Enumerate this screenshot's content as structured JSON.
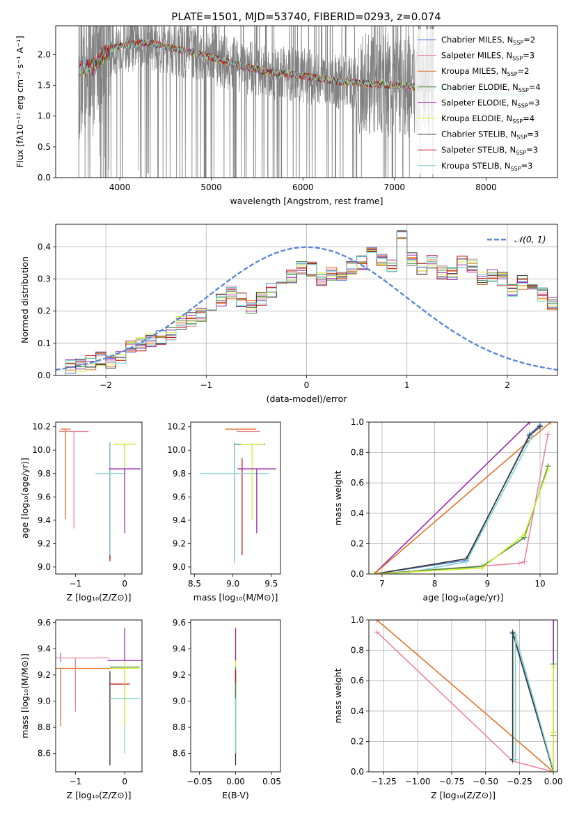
{
  "title": "PLATE=1501, MJD=53740, FIBERID=0293, z=0.074",
  "colors": {
    "chabrier_miles": "#5b7fd3",
    "salpeter_miles": "#e8869a",
    "kroupa_miles": "#e07428",
    "chabrier_elodie": "#3f8a3f",
    "salpeter_elodie": "#9b27b0",
    "kroupa_elodie": "#d7ec2f",
    "chabrier_stelib": "#333333",
    "salpeter_stelib": "#c61a1a",
    "kroupa_stelib": "#7fd3d3",
    "data": "#808080",
    "gauss": "#5b87d9",
    "grid": "#b0b0b0"
  },
  "legend": [
    {
      "key": "chabrier_miles",
      "pre": "Chabrier MILES, N",
      "sub": "SSP",
      "post": "=2"
    },
    {
      "key": "salpeter_miles",
      "pre": "Salpeter MILES, N",
      "sub": "SSP",
      "post": "=3"
    },
    {
      "key": "kroupa_miles",
      "pre": "Kroupa MILES, N",
      "sub": "SSP",
      "post": "=2"
    },
    {
      "key": "chabrier_elodie",
      "pre": "Chabrier ELODIE, N",
      "sub": "SSP",
      "post": "=4"
    },
    {
      "key": "salpeter_elodie",
      "pre": "Salpeter ELODIE, N",
      "sub": "SSP",
      "post": "=3"
    },
    {
      "key": "kroupa_elodie",
      "pre": "Kroupa ELODIE, N",
      "sub": "SSP",
      "post": "=4"
    },
    {
      "key": "chabrier_stelib",
      "pre": "Chabrier STELIB, N",
      "sub": "SSP",
      "post": "=3"
    },
    {
      "key": "salpeter_stelib",
      "pre": "Salpeter STELIB, N",
      "sub": "SSP",
      "post": "=3"
    },
    {
      "key": "kroupa_stelib",
      "pre": "Kroupa STELIB, N",
      "sub": "SSP",
      "post": "=3"
    }
  ],
  "chart_data": [
    {
      "id": "spectrum",
      "type": "line",
      "ylabel": "Flux [fλ10⁻¹⁷ erg cm⁻² s⁻¹ A⁻¹]",
      "xlabel": "wavelength [Angstrom, rest frame]",
      "xlim": [
        3300,
        8780
      ],
      "ylim": [
        0,
        2.47
      ],
      "xticks": [
        4000,
        5000,
        6000,
        7000,
        8000
      ],
      "yticks": [
        0.0,
        0.5,
        1.0,
        1.5,
        2.0
      ],
      "grid": false,
      "legend_position": "upper right",
      "data_range": [
        3550,
        7430
      ],
      "model_range": [
        3560,
        7430
      ],
      "model_extension_range": [
        7430,
        8440
      ],
      "model_continuum": [
        [
          3560,
          1.78
        ],
        [
          3700,
          1.8
        ],
        [
          3850,
          2.05
        ],
        [
          4000,
          2.15
        ],
        [
          4300,
          2.2
        ],
        [
          4600,
          2.1
        ],
        [
          4900,
          2.0
        ],
        [
          5200,
          1.87
        ],
        [
          5600,
          1.72
        ],
        [
          6000,
          1.66
        ],
        [
          6400,
          1.56
        ],
        [
          6800,
          1.52
        ],
        [
          7100,
          1.49
        ],
        [
          7400,
          1.45
        ],
        [
          7800,
          1.4
        ],
        [
          8100,
          1.37
        ],
        [
          8440,
          1.33
        ]
      ]
    },
    {
      "id": "residuals",
      "type": "histogram",
      "ylabel": "Normed distribution",
      "xlabel": "(data-model)/error",
      "xlim": [
        -2.5,
        2.5
      ],
      "ylim": [
        0,
        0.47
      ],
      "xticks": [
        -2,
        -1,
        0,
        1,
        2
      ],
      "xticklabels": [
        "−2",
        "−1",
        "0",
        "1",
        "2"
      ],
      "yticks": [
        0.0,
        0.1,
        0.2,
        0.3,
        0.4
      ],
      "grid": true,
      "legend": [
        {
          "label": "𝒩(0, 1)",
          "style": "dashed"
        }
      ],
      "legend_position": "upper right",
      "bin_width": 0.1,
      "bin_start": -2.5,
      "reference_heights": [
        0.02,
        0.028,
        0.034,
        0.04,
        0.052,
        0.045,
        0.058,
        0.085,
        0.095,
        0.108,
        0.118,
        0.13,
        0.165,
        0.175,
        0.19,
        0.205,
        0.235,
        0.26,
        0.235,
        0.215,
        0.24,
        0.265,
        0.295,
        0.31,
        0.335,
        0.33,
        0.3,
        0.315,
        0.31,
        0.335,
        0.35,
        0.4,
        0.355,
        0.34,
        0.43,
        0.36,
        0.33,
        0.355,
        0.32,
        0.32,
        0.355,
        0.34,
        0.3,
        0.315,
        0.3,
        0.265,
        0.29,
        0.265,
        0.25,
        0.225,
        0.205,
        0.19,
        0.175,
        0.15,
        0.135,
        0.12,
        0.11,
        0.1,
        0.09,
        0.085,
        0.075,
        0.07,
        0.06,
        0.055,
        0.045,
        0.035
      ],
      "gauss": {
        "mu": 0,
        "sigma": 1
      }
    },
    {
      "id": "age_vs_z",
      "type": "errorbar",
      "ylabel": "age  [log₁₀(age/yr)]",
      "xlabel": "Z [log₁₀(Z/Z⊙)]",
      "xlim": [
        -1.4,
        0.35
      ],
      "ylim": [
        8.94,
        10.24
      ],
      "xticks": [
        -1,
        0
      ],
      "xticklabels": [
        "−1",
        "0"
      ],
      "yticks": [
        9.0,
        9.2,
        9.4,
        9.6,
        9.8,
        10.0,
        10.2
      ],
      "grid": false,
      "points": [
        {
          "key": "kroupa_miles",
          "x": -1.2,
          "xerr": 0.1,
          "y": 10.18,
          "yerr": [
            0.77,
            0.0
          ]
        },
        {
          "key": "salpeter_miles",
          "x": -1.03,
          "xerr": 0.3,
          "y": 10.16,
          "yerr": [
            0.83,
            0.0
          ]
        },
        {
          "key": "chabrier_stelib",
          "x": -0.3,
          "xerr": 0.0,
          "y": 10.06,
          "yerr": [
            0.99,
            0.0
          ]
        },
        {
          "key": "salpeter_stelib",
          "x": -0.3,
          "xerr": 0.0,
          "y": 9.1,
          "yerr": [
            0.05,
            0.0
          ]
        },
        {
          "key": "kroupa_stelib",
          "x": -0.3,
          "xerr": 0.3,
          "y": 9.8,
          "yerr": [
            0.7,
            0.27
          ]
        },
        {
          "key": "chabrier_elodie",
          "x": 0.0,
          "xerr": 0.22,
          "y": 10.05,
          "yerr": [
            0.65,
            0.0
          ]
        },
        {
          "key": "kroupa_elodie",
          "x": 0.0,
          "xerr": 0.22,
          "y": 10.05,
          "yerr": [
            0.65,
            0.0
          ]
        },
        {
          "key": "salpeter_elodie",
          "x": 0.0,
          "xerr": 0.32,
          "y": 9.84,
          "yerr": [
            0.55,
            0.0
          ]
        }
      ]
    },
    {
      "id": "age_vs_mass",
      "type": "errorbar",
      "ylabel": "",
      "xlabel": "mass [log₁₀(M/M⊙)]",
      "xlim": [
        8.45,
        9.62
      ],
      "ylim": [
        8.94,
        10.24
      ],
      "xticks": [
        8.5,
        9.0,
        9.5
      ],
      "yticks": [
        9.0,
        9.2,
        9.4,
        9.6,
        9.8,
        10.0,
        10.2
      ],
      "grid": false,
      "points": [
        {
          "key": "kroupa_miles",
          "x": 9.1,
          "xerr": 0.2,
          "y": 10.18,
          "yerr": [
            0.0,
            0.0
          ]
        },
        {
          "key": "salpeter_miles",
          "x": 9.2,
          "xerr": 0.15,
          "y": 10.16,
          "yerr": [
            0.0,
            0.0
          ]
        },
        {
          "key": "chabrier_stelib",
          "x": 9.02,
          "xerr": 0.0,
          "y": 10.06,
          "yerr": [
            0.99,
            0.0
          ]
        },
        {
          "key": "salpeter_stelib",
          "x": 9.12,
          "xerr": 0.0,
          "y": 9.8,
          "yerr": [
            0.7,
            0.13
          ]
        },
        {
          "key": "kroupa_stelib",
          "x": 9.02,
          "xerr": 0.45,
          "y": 9.8,
          "yerr": [
            0.77,
            0.27
          ]
        },
        {
          "key": "chabrier_elodie",
          "x": 9.22,
          "xerr": 0.2,
          "y": 10.05,
          "yerr": [
            0.0,
            0.0
          ]
        },
        {
          "key": "kroupa_elodie",
          "x": 9.25,
          "xerr": 0.15,
          "y": 10.05,
          "yerr": [
            0.65,
            0.0
          ]
        },
        {
          "key": "salpeter_elodie",
          "x": 9.31,
          "xerr": 0.25,
          "y": 9.84,
          "yerr": [
            0.55,
            0.0
          ]
        }
      ]
    },
    {
      "id": "mass_weight_vs_age",
      "type": "line",
      "ylabel": "mass weight",
      "xlabel": "age  [log₁₀(age/yr)]",
      "xlim": [
        6.75,
        10.33
      ],
      "ylim": [
        0,
        1
      ],
      "xticks": [
        7,
        8,
        9,
        10
      ],
      "yticks": [
        0.0,
        0.2,
        0.4,
        0.6,
        0.8,
        1.0
      ],
      "grid": true,
      "series": [
        {
          "key": "salpeter_elodie",
          "x": [
            6.85,
            9.8
          ],
          "y": [
            0.0,
            1.0
          ]
        },
        {
          "key": "kroupa_miles",
          "x": [
            6.85,
            10.2
          ],
          "y": [
            0.0,
            1.0
          ]
        },
        {
          "key": "chabrier_miles",
          "x": [
            6.85,
            8.6,
            9.8,
            10.0
          ],
          "y": [
            0.0,
            0.09,
            0.92,
            0.98
          ]
        },
        {
          "key": "chabrier_stelib",
          "x": [
            6.85,
            8.6,
            9.8,
            10.0
          ],
          "y": [
            0.0,
            0.1,
            0.91,
            0.97
          ]
        },
        {
          "key": "kroupa_stelib",
          "x": [
            6.85,
            7.5,
            8.6,
            9.85
          ],
          "y": [
            0.0,
            0.01,
            0.08,
            0.91
          ]
        },
        {
          "key": "salpeter_miles",
          "x": [
            6.85,
            9.6,
            9.7,
            10.15
          ],
          "y": [
            0.0,
            0.07,
            0.08,
            0.92
          ]
        },
        {
          "key": "chabrier_elodie",
          "x": [
            6.85,
            8.9,
            9.7,
            10.15
          ],
          "y": [
            0.0,
            0.05,
            0.24,
            0.71
          ]
        },
        {
          "key": "kroupa_elodie",
          "x": [
            6.85,
            8.9,
            9.7,
            10.15
          ],
          "y": [
            0.0,
            0.04,
            0.26,
            0.69
          ]
        }
      ]
    },
    {
      "id": "mass_vs_z",
      "type": "errorbar",
      "ylabel": "mass [log₁₀(M/M⊙)]",
      "xlabel": "Z [log₁₀(Z/Z⊙)]",
      "xlim": [
        -1.4,
        0.35
      ],
      "ylim": [
        8.46,
        9.62
      ],
      "xticks": [
        -1,
        0
      ],
      "xticklabels": [
        "−1",
        "0"
      ],
      "yticks": [
        8.6,
        8.8,
        9.0,
        9.2,
        9.4,
        9.6
      ],
      "grid": false,
      "points": [
        {
          "key": "chabrier_miles",
          "x": -1.3,
          "xerr": 0.0,
          "y": 9.3,
          "yerr": [
            0.0,
            0.07
          ]
        },
        {
          "key": "kroupa_miles",
          "x": -1.3,
          "xerr": 1.3,
          "y": 9.25,
          "yerr": [
            0.44,
            0.0
          ]
        },
        {
          "key": "salpeter_miles",
          "x": -1.0,
          "xerr": 0.7,
          "y": 9.33,
          "yerr": [
            0.41,
            0.0
          ]
        },
        {
          "key": "chabrier_stelib",
          "x": -0.3,
          "xerr": 0.0,
          "y": 9.23,
          "yerr": [
            0.72,
            0.0
          ]
        },
        {
          "key": "salpeter_stelib",
          "x": -0.1,
          "xerr": 0.2,
          "y": 9.13,
          "yerr": [
            0.0,
            0.0
          ]
        },
        {
          "key": "kroupa_stelib",
          "x": 0.0,
          "xerr": 0.3,
          "y": 9.02,
          "yerr": [
            0.42,
            0.0
          ]
        },
        {
          "key": "chabrier_elodie",
          "x": 0.0,
          "xerr": 0.3,
          "y": 9.26,
          "yerr": [
            0.44,
            0.0
          ]
        },
        {
          "key": "kroupa_elodie",
          "x": 0.0,
          "xerr": 0.3,
          "y": 9.25,
          "yerr": [
            0.44,
            0.3
          ]
        },
        {
          "key": "salpeter_elodie",
          "x": 0.0,
          "xerr": 0.35,
          "y": 9.31,
          "yerr": [
            0.0,
            0.25
          ]
        }
      ]
    },
    {
      "id": "mass_vs_ebv",
      "type": "errorbar",
      "ylabel": "",
      "xlabel": "E(B-V)",
      "xlim": [
        -0.062,
        0.062
      ],
      "ylim": [
        8.46,
        9.62
      ],
      "xticks": [
        -0.05,
        0.0,
        0.05
      ],
      "xticklabels": [
        "−0.05",
        "0.00",
        "0.05"
      ],
      "yticks": [
        8.6,
        8.8,
        9.0,
        9.2,
        9.4,
        9.6
      ],
      "grid": false,
      "points": [
        {
          "key": "chabrier_stelib",
          "x": 0.0,
          "xerr": 0.0,
          "y": 9.23,
          "yerr": [
            0.72,
            0.0
          ]
        },
        {
          "key": "kroupa_elodie",
          "x": 0.0,
          "xerr": 0.0,
          "y": 9.25,
          "yerr": [
            0.0,
            0.3
          ]
        },
        {
          "key": "salpeter_elodie",
          "x": 0.0,
          "xerr": 0.0,
          "y": 9.31,
          "yerr": [
            0.0,
            0.25
          ]
        },
        {
          "key": "chabrier_elodie",
          "x": 0.0,
          "xerr": 0.0,
          "y": 9.26,
          "yerr": [
            0.44,
            0.0
          ]
        },
        {
          "key": "salpeter_stelib",
          "x": 0.0,
          "xerr": 0.0,
          "y": 9.2,
          "yerr": [
            0.06,
            0.04
          ]
        },
        {
          "key": "kroupa_stelib",
          "x": 0.0,
          "xerr": 0.0,
          "y": 9.02,
          "yerr": [
            0.42,
            0.0
          ]
        }
      ]
    },
    {
      "id": "mass_weight_vs_z",
      "type": "line",
      "ylabel": "mass weight",
      "xlabel": "Z [log₁₀(Z/Z⊙)]",
      "xlim": [
        -1.36,
        0.03
      ],
      "ylim": [
        0,
        1
      ],
      "xticks": [
        -1.25,
        -1.0,
        -0.75,
        -0.5,
        -0.25,
        0.0
      ],
      "xticklabels": [
        "−1.25",
        "−1.00",
        "−0.75",
        "−0.50",
        "−0.25",
        "0.00"
      ],
      "yticks": [
        0.0,
        0.2,
        0.4,
        0.6,
        0.8,
        1.0
      ],
      "grid": true,
      "series": [
        {
          "key": "salpeter_elodie",
          "x": [
            0.0,
            0.0
          ],
          "y": [
            0.0,
            1.0
          ]
        },
        {
          "key": "kroupa_miles",
          "x": [
            -1.3,
            0.0
          ],
          "y": [
            1.0,
            0.0
          ]
        },
        {
          "key": "salpeter_miles",
          "x": [
            -1.3,
            -0.3,
            0.0
          ],
          "y": [
            0.92,
            0.07,
            0.0
          ]
        },
        {
          "key": "chabrier_miles",
          "x": [
            -0.3,
            -0.3,
            0.0
          ],
          "y": [
            0.08,
            0.91,
            0.0
          ]
        },
        {
          "key": "chabrier_stelib",
          "x": [
            -0.3,
            -0.3,
            0.0
          ],
          "y": [
            0.08,
            0.92,
            0.0
          ]
        },
        {
          "key": "kroupa_stelib",
          "x": [
            -0.28,
            -0.28,
            0.0
          ],
          "y": [
            0.08,
            0.9,
            0.01
          ]
        },
        {
          "key": "chabrier_elodie",
          "x": [
            0.0,
            0.0,
            0.0
          ],
          "y": [
            0.0,
            0.24,
            0.71
          ]
        },
        {
          "key": "kroupa_elodie",
          "x": [
            0.0,
            0.0,
            0.0
          ],
          "y": [
            0.0,
            0.26,
            0.69
          ]
        }
      ]
    }
  ]
}
